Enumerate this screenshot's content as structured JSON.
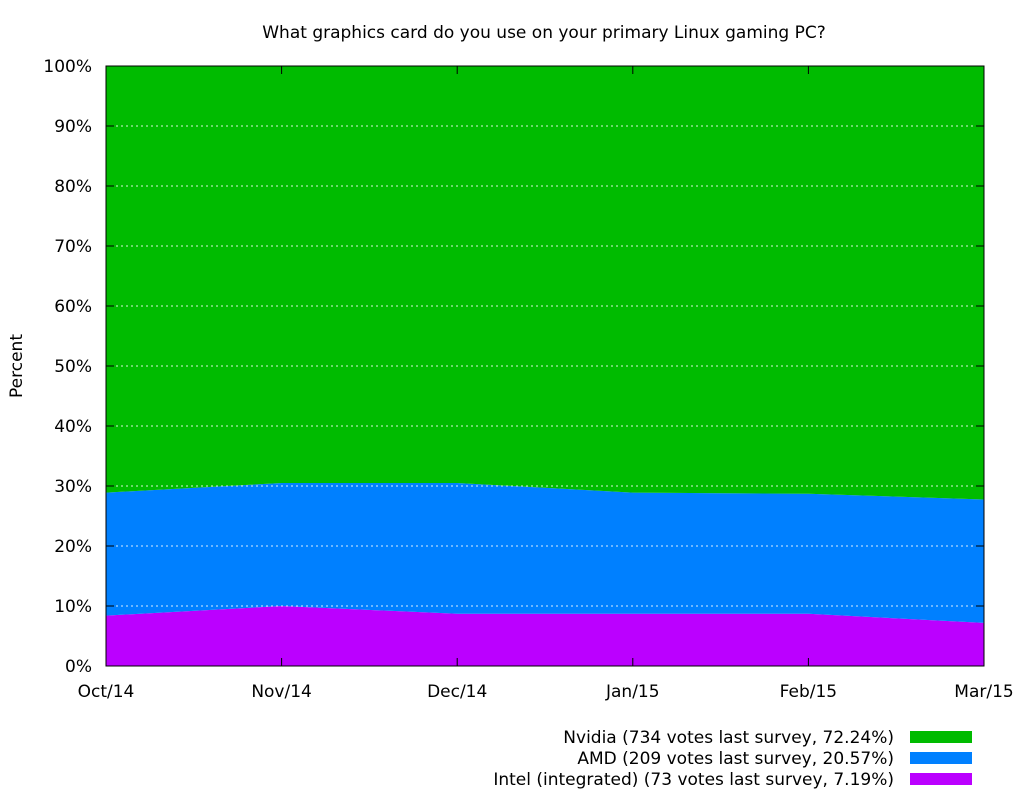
{
  "chart_data": {
    "type": "area",
    "stacked": true,
    "title": "What graphics card do you use on your primary Linux gaming PC?",
    "xlabel": "",
    "ylabel": "Percent",
    "categories": [
      "Oct/14",
      "Nov/14",
      "Dec/14",
      "Jan/15",
      "Feb/15",
      "Mar/15"
    ],
    "ylim": [
      0,
      100
    ],
    "yticks": [
      0,
      10,
      20,
      30,
      40,
      50,
      60,
      70,
      80,
      90,
      100
    ],
    "ytick_labels": [
      "0%",
      "10%",
      "20%",
      "30%",
      "40%",
      "50%",
      "60%",
      "70%",
      "80%",
      "90%",
      "100%"
    ],
    "grid": true,
    "legend_position": "bottom-right",
    "series": [
      {
        "name": "Intel (integrated) (73 votes last survey, 7.19%)",
        "color": "#bb00ff",
        "values": [
          8.4,
          10.0,
          8.7,
          8.7,
          8.7,
          7.19
        ]
      },
      {
        "name": "AMD (209 votes last survey, 20.57%)",
        "color": "#0080ff",
        "values": [
          20.5,
          20.5,
          21.8,
          20.2,
          20.0,
          20.57
        ]
      },
      {
        "name": "Nvidia (734 votes last survey, 72.24%)",
        "color": "#00bb00",
        "values": [
          71.1,
          69.5,
          69.5,
          71.1,
          71.3,
          72.24
        ]
      }
    ],
    "legend_order": [
      2,
      1,
      0
    ]
  }
}
